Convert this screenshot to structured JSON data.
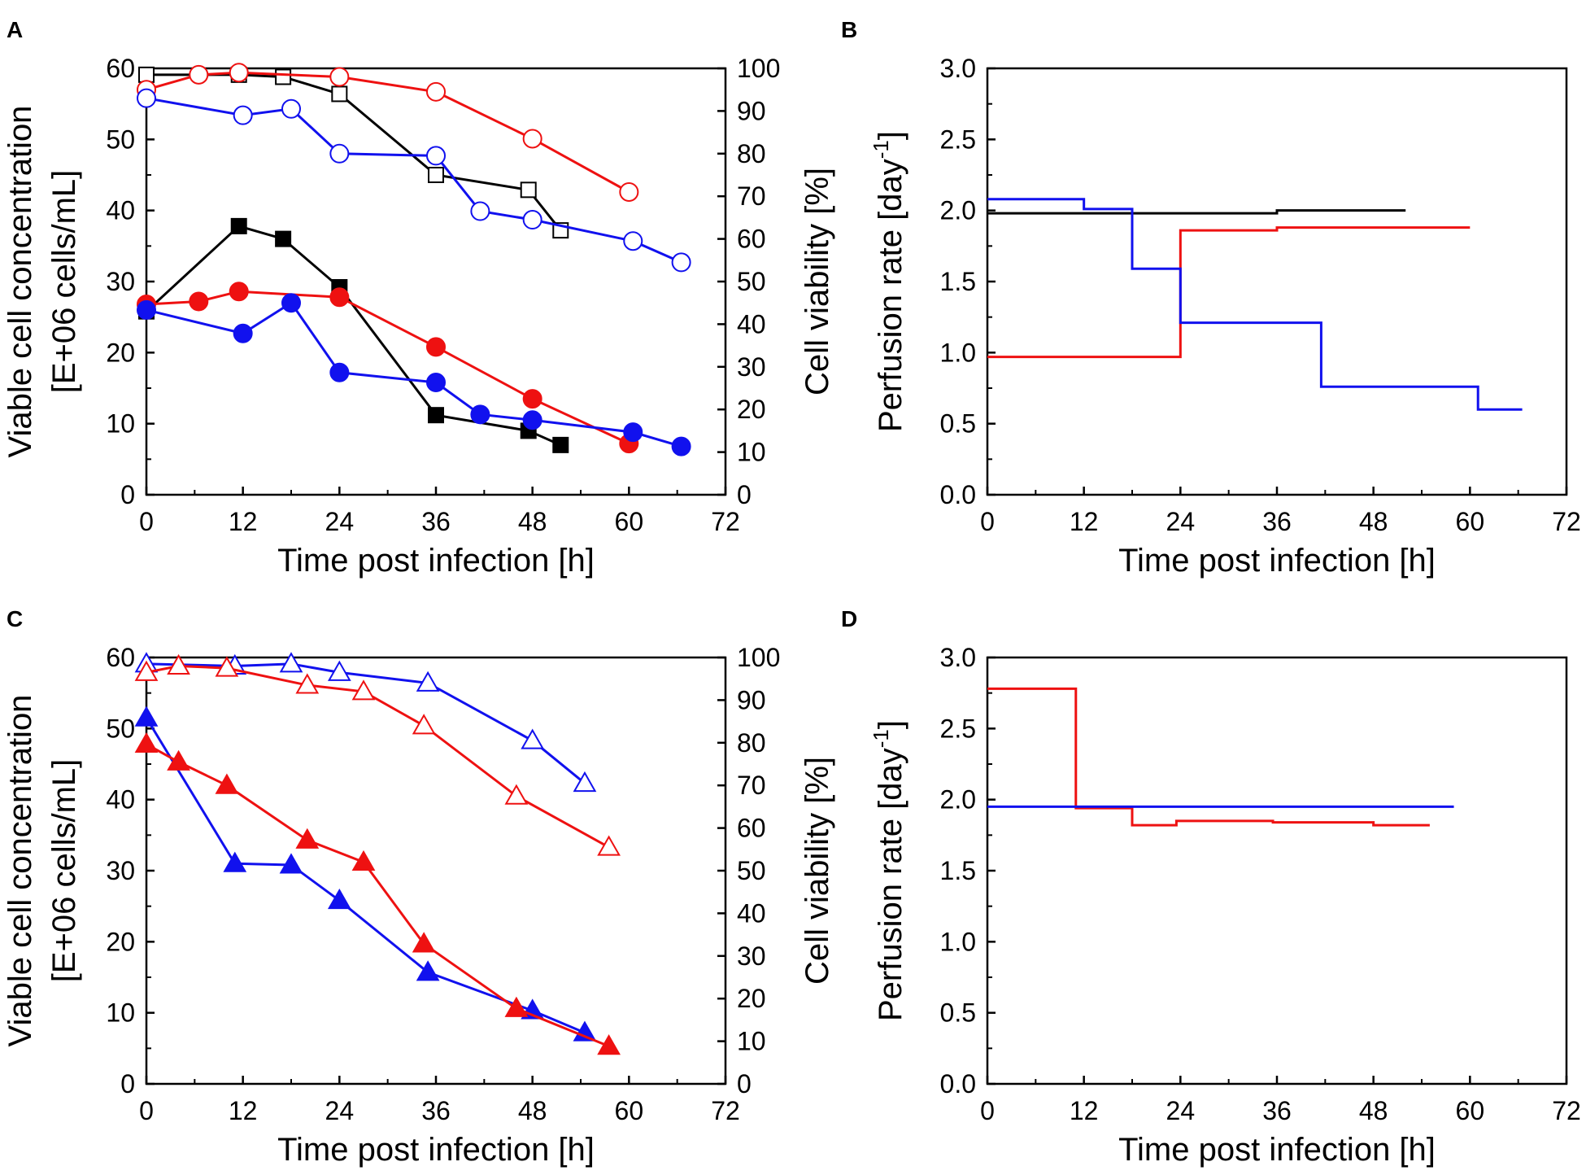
{
  "chart_data": [
    {
      "panel": "A",
      "type": "line",
      "xlabel": "Time post infection [h]",
      "ylabel": [
        "Viable cell concentration",
        "[E+06 cells/mL]"
      ],
      "ylabel_right": "Cell viability [%]",
      "xlim": [
        0,
        72
      ],
      "ylim": [
        0,
        60
      ],
      "ylim_right": [
        0,
        100
      ],
      "xticks": [
        "0",
        "12",
        "24",
        "36",
        "48",
        "60",
        "72"
      ],
      "yticks": [
        "0",
        "10",
        "20",
        "30",
        "40",
        "50",
        "60"
      ],
      "yticks_right": [
        "0",
        "10",
        "20",
        "30",
        "40",
        "50",
        "60",
        "70",
        "80",
        "90",
        "100"
      ],
      "series": [
        {
          "name": "black VCC",
          "axis": "left",
          "marker": "square",
          "filled": true,
          "color": "#000000",
          "x": [
            0,
            11.5,
            17,
            24,
            36,
            47.5,
            51.5
          ],
          "y": [
            25.8,
            37.8,
            36,
            29.2,
            11.2,
            9,
            7
          ]
        },
        {
          "name": "black viability",
          "axis": "right",
          "marker": "square",
          "filled": false,
          "color": "#000000",
          "x": [
            0,
            11.5,
            17,
            24,
            36,
            47.5,
            51.5
          ],
          "y": [
            98.5,
            98.5,
            98,
            94,
            75,
            71.5,
            62
          ]
        },
        {
          "name": "red VCC",
          "axis": "left",
          "marker": "circle",
          "filled": true,
          "color": "#ee1111",
          "x": [
            0,
            6.5,
            11.5,
            24,
            36,
            48,
            60
          ],
          "y": [
            26.8,
            27.2,
            28.6,
            27.8,
            20.8,
            13.5,
            7.2
          ]
        },
        {
          "name": "red viability",
          "axis": "right",
          "marker": "circle",
          "filled": false,
          "color": "#ee1111",
          "x": [
            0,
            6.5,
            11.5,
            24,
            36,
            48,
            60
          ],
          "y": [
            95,
            98.5,
            99,
            98,
            94.5,
            83.5,
            71
          ]
        },
        {
          "name": "blue VCC",
          "axis": "left",
          "marker": "circle",
          "filled": true,
          "color": "#1111ee",
          "x": [
            0,
            12,
            18,
            24,
            36,
            41.5,
            48,
            60.5,
            66.5
          ],
          "y": [
            26,
            22.7,
            27,
            17.2,
            15.8,
            11.3,
            10.5,
            8.8,
            6.8
          ]
        },
        {
          "name": "blue viability",
          "axis": "right",
          "marker": "circle",
          "filled": false,
          "color": "#1111ee",
          "x": [
            0,
            12,
            18,
            24,
            36,
            41.5,
            48,
            60.5,
            66.5
          ],
          "y": [
            93,
            89,
            90.5,
            80,
            79.5,
            66.5,
            64.5,
            59.5,
            54.5
          ]
        }
      ]
    },
    {
      "panel": "B",
      "type": "line",
      "step": true,
      "xlabel": "Time post infection [h]",
      "ylabel": "Perfusion rate [day",
      "ylabel_sup": "-1",
      "ylabel_end": "]",
      "xlim": [
        0,
        72
      ],
      "ylim": [
        0,
        3
      ],
      "xticks": [
        "0",
        "12",
        "24",
        "36",
        "48",
        "60",
        "72"
      ],
      "yticks": [
        "0.0",
        "0.5",
        "1.0",
        "1.5",
        "2.0",
        "2.5",
        "3.0"
      ],
      "series": [
        {
          "name": "black",
          "color": "#000000",
          "x": [
            0,
            36,
            36,
            52
          ],
          "y": [
            1.98,
            1.98,
            2.0,
            2.0
          ]
        },
        {
          "name": "red",
          "color": "#ee1111",
          "x": [
            0,
            24,
            24,
            36,
            36,
            60
          ],
          "y": [
            0.97,
            0.97,
            1.86,
            1.86,
            1.88,
            1.88
          ]
        },
        {
          "name": "blue",
          "color": "#1111ee",
          "x": [
            0,
            12,
            12,
            18,
            18,
            24,
            24,
            41.5,
            41.5,
            61,
            61,
            66.5
          ],
          "y": [
            2.08,
            2.08,
            2.01,
            2.01,
            1.59,
            1.59,
            1.21,
            1.21,
            0.76,
            0.76,
            0.6,
            0.6
          ]
        }
      ]
    },
    {
      "panel": "C",
      "type": "line",
      "xlabel": "Time post infection [h]",
      "ylabel": [
        "Viable cell concentration",
        "[E+06 cells/mL]"
      ],
      "ylabel_right": "Cell viability [%]",
      "xlim": [
        0,
        72
      ],
      "ylim": [
        0,
        60
      ],
      "ylim_right": [
        0,
        100
      ],
      "xticks": [
        "0",
        "12",
        "24",
        "36",
        "48",
        "60",
        "72"
      ],
      "yticks": [
        "0",
        "10",
        "20",
        "30",
        "40",
        "50",
        "60"
      ],
      "yticks_right": [
        "0",
        "10",
        "20",
        "30",
        "40",
        "50",
        "60",
        "70",
        "80",
        "90",
        "100"
      ],
      "series": [
        {
          "name": "blue VCC",
          "axis": "left",
          "marker": "triangle",
          "filled": true,
          "color": "#1111ee",
          "x": [
            0,
            11,
            18,
            24,
            35,
            48,
            54.5
          ],
          "y": [
            51.5,
            31,
            30.8,
            25.8,
            15.7,
            10.3,
            7.2
          ]
        },
        {
          "name": "blue viability",
          "axis": "right",
          "marker": "triangle",
          "filled": false,
          "color": "#1111ee",
          "x": [
            0,
            11,
            18,
            24,
            35,
            48,
            54.5
          ],
          "y": [
            98.5,
            98,
            98.5,
            96.5,
            94,
            80.5,
            70.5
          ]
        },
        {
          "name": "red VCC",
          "axis": "left",
          "marker": "triangle",
          "filled": true,
          "color": "#ee1111",
          "x": [
            0,
            4,
            10,
            20,
            27,
            34.5,
            46,
            57.5
          ],
          "y": [
            47.8,
            45.3,
            42,
            34.3,
            31.2,
            19.7,
            10.6,
            5.3
          ]
        },
        {
          "name": "red viability",
          "axis": "right",
          "marker": "triangle",
          "filled": false,
          "color": "#ee1111",
          "x": [
            0,
            4,
            10,
            20,
            27,
            34.5,
            46,
            57.5
          ],
          "y": [
            96.5,
            98,
            97.5,
            93.5,
            92,
            84,
            67.5,
            55.5
          ]
        }
      ]
    },
    {
      "panel": "D",
      "type": "line",
      "step": true,
      "xlabel": "Time post infection [h]",
      "ylabel": "Perfusion rate [day",
      "ylabel_sup": "-1",
      "ylabel_end": "]",
      "xlim": [
        0,
        72
      ],
      "ylim": [
        0,
        3
      ],
      "xticks": [
        "0",
        "12",
        "24",
        "36",
        "48",
        "60",
        "72"
      ],
      "yticks": [
        "0.0",
        "0.5",
        "1.0",
        "1.5",
        "2.0",
        "2.5",
        "3.0"
      ],
      "series": [
        {
          "name": "red",
          "color": "#ee1111",
          "x": [
            0,
            11,
            11,
            18,
            18,
            23.5,
            23.5,
            35.5,
            35.5,
            48,
            48,
            55
          ],
          "y": [
            2.78,
            2.78,
            1.94,
            1.94,
            1.82,
            1.82,
            1.85,
            1.85,
            1.84,
            1.84,
            1.82,
            1.82
          ]
        },
        {
          "name": "blue",
          "color": "#1111ee",
          "x": [
            0,
            58
          ],
          "y": [
            1.95,
            1.95
          ]
        }
      ]
    }
  ]
}
